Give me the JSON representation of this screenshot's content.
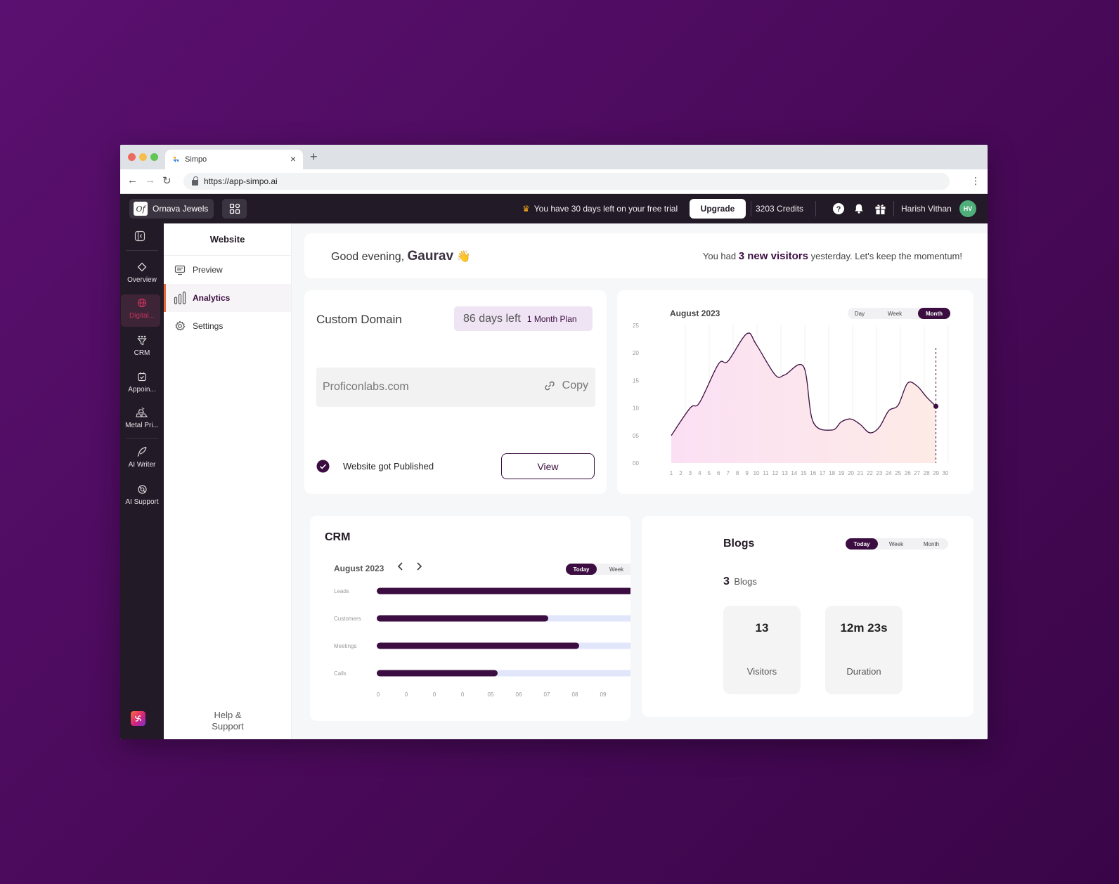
{
  "browser": {
    "tab_title": "Simpo",
    "url": "https://app-simpo.ai"
  },
  "topbar": {
    "brand_logo": "Of",
    "brand_name": "Ornava Jewels",
    "trial_text": "You have 30 days left on your free trial",
    "upgrade_label": "Upgrade",
    "credits": "3203 Credits",
    "user_name": "Harish Vithan",
    "user_initials": "HV"
  },
  "rail": {
    "items": [
      {
        "label": "Overview",
        "icon": "diamond-icon"
      },
      {
        "label": "Digital...",
        "icon": "globe-icon",
        "active": true
      },
      {
        "label": "CRM",
        "icon": "funnel-icon"
      },
      {
        "label": "Appoin...",
        "icon": "calendar-check-icon"
      },
      {
        "label": "Metal Pri...",
        "icon": "gold-bars-icon"
      },
      {
        "label": "AI Writer",
        "icon": "quill-icon"
      },
      {
        "label": "AI Support",
        "icon": "support-icon"
      }
    ]
  },
  "subnav": {
    "title": "Website",
    "items": [
      {
        "label": "Preview",
        "icon": "monitor-icon"
      },
      {
        "label": "Analytics",
        "icon": "bar-chart-icon",
        "active": true
      },
      {
        "label": "Settings",
        "icon": "gear-icon"
      }
    ],
    "help_line1": "Help &",
    "help_line2": "Support"
  },
  "greeting": {
    "prefix": "Good evening,",
    "name": "Gaurav",
    "emoji": "👋",
    "visitors_prefix": "You had",
    "visitors_bold": "3 new visitors",
    "visitors_suffix": "yesterday. Let's keep the momentum!"
  },
  "domain_card": {
    "title": "Custom Domain",
    "days_left": "86 days left",
    "plan": "1 Month Plan",
    "domain": "Proficonlabs.com",
    "copy_label": "Copy",
    "status": "Website got Published",
    "view_label": "View"
  },
  "visitors_chart": {
    "title": "August 2023",
    "tabs": [
      "Day",
      "Week",
      "Month"
    ],
    "active_tab": "Month",
    "y_ticks": [
      "25",
      "20",
      "15",
      "10",
      "05",
      "00"
    ]
  },
  "chart_data": [
    {
      "type": "area",
      "title": "August 2023",
      "x": [
        1,
        2,
        3,
        4,
        5,
        6,
        7,
        8,
        9,
        10,
        11,
        12,
        13,
        14,
        15,
        16,
        17,
        18,
        19,
        20,
        21,
        22,
        23,
        24,
        25,
        26,
        27,
        28,
        29,
        30
      ],
      "points_x": [
        1,
        3,
        4,
        6,
        7,
        9,
        10,
        12,
        13,
        15,
        16,
        18,
        19,
        20,
        21,
        22,
        23,
        24,
        25,
        26,
        27,
        28,
        29
      ],
      "points_y": [
        5,
        10,
        11,
        18,
        18.5,
        23.5,
        21.5,
        16,
        16,
        17.5,
        7.5,
        6,
        7.5,
        8,
        7,
        5.5,
        6.5,
        9.5,
        10.5,
        14.5,
        14,
        12,
        10.3
      ],
      "ylim": [
        0,
        25
      ],
      "highlight_x": 29,
      "fill": "#fde3ee",
      "line_color": "#3b0d40"
    },
    {
      "type": "bar",
      "orientation": "horizontal",
      "title": "CRM",
      "categories": [
        "Leads",
        "Customers",
        "Meetings",
        "Calls"
      ],
      "values": [
        9.1,
        6.1,
        7.2,
        4.3
      ],
      "x_ticks": [
        "0",
        "0",
        "0",
        "0",
        "05",
        "06",
        "07",
        "08",
        "09"
      ],
      "bar_color": "#3b0d40",
      "track_color": "#e2e6fb"
    }
  ],
  "crm_card": {
    "title": "CRM",
    "month": "August 2023",
    "tabs": [
      "Today",
      "Week"
    ],
    "active_tab": "Today",
    "rows": [
      {
        "label": "Leads"
      },
      {
        "label": "Customers"
      },
      {
        "label": "Meetings"
      },
      {
        "label": "Calls"
      }
    ],
    "x_ticks": [
      "0",
      "0",
      "0",
      "0",
      "05",
      "06",
      "07",
      "08",
      "09"
    ]
  },
  "blogs_card": {
    "title": "Blogs",
    "tabs": [
      "Today",
      "Week",
      "Month"
    ],
    "active_tab": "Today",
    "count": "3",
    "count_label": "Blogs",
    "visitors_value": "13",
    "visitors_label": "Visitors",
    "duration_value": "12m 23s",
    "duration_label": "Duration"
  }
}
